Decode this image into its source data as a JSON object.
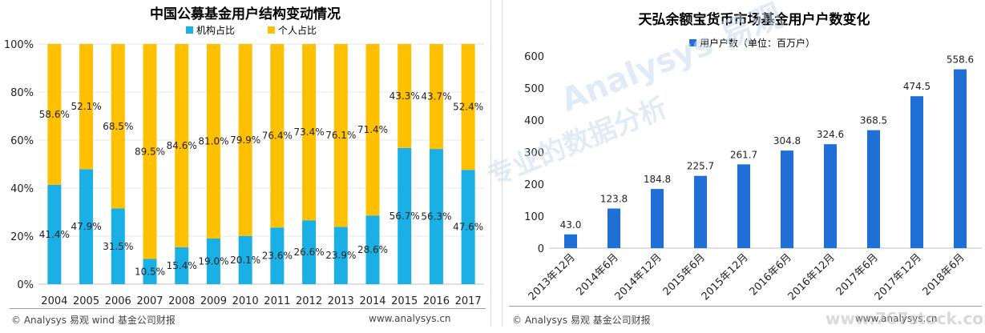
{
  "colors": {
    "institution": "#1ab0e6",
    "individual": "#ffc000",
    "users": "#1f6fd6"
  },
  "left": {
    "footer_source": "© Analysys 易观 wind 基金公司财报",
    "footer_url": "www.analysys.cn"
  },
  "right": {
    "footer_source": "© Analysys 易观 基金公司财报",
    "footer_url": "www.analysys.cn"
  },
  "watermark": {
    "brand": "Analysys 易观",
    "slogan": "专业的数据分析",
    "site": "www.767stock.com"
  },
  "chart_data": [
    {
      "type": "bar",
      "stacked": true,
      "title": "中国公募基金用户结构变动情况",
      "categories": [
        "2004",
        "2005",
        "2006",
        "2007",
        "2008",
        "2009",
        "2010",
        "2011",
        "2012",
        "2013",
        "2014",
        "2015",
        "2016",
        "2017"
      ],
      "series": [
        {
          "name": "机构占比",
          "values": [
            41.4,
            47.9,
            31.5,
            10.5,
            15.4,
            19.0,
            20.1,
            23.6,
            26.6,
            23.9,
            28.6,
            56.7,
            56.3,
            47.6
          ],
          "labels": [
            "41.4%",
            "47.9%",
            "31.5%",
            "10.5%",
            "15.4%",
            "19.0%",
            "20.1%",
            "23.6%",
            "26.6%",
            "23.9%",
            "28.6%",
            "56.7%",
            "56.3%",
            "47.6%"
          ]
        },
        {
          "name": "个人占比",
          "values": [
            58.6,
            52.1,
            68.5,
            89.5,
            84.6,
            81.0,
            79.9,
            76.4,
            73.4,
            76.1,
            71.4,
            43.3,
            43.7,
            52.4
          ],
          "labels": [
            "58.6%",
            "52.1%",
            "68.5%",
            "89.5%",
            "84.6%",
            "81.0%",
            "79.9%",
            "76.4%",
            "73.4%",
            "76.1%",
            "71.4%",
            "43.3%",
            "43.7%",
            "52.4%"
          ]
        }
      ],
      "ylim": [
        0,
        100
      ],
      "yticks": [
        "0%",
        "20%",
        "40%",
        "60%",
        "80%",
        "100%"
      ],
      "legend": "top"
    },
    {
      "type": "bar",
      "title": "天弘余额宝货币市场基金用户户数变化",
      "categories": [
        "2013年12月",
        "2014年6月",
        "2014年12月",
        "2015年6月",
        "2015年12月",
        "2016年6月",
        "2016年12月",
        "2017年6月",
        "2017年12月",
        "2018年6月"
      ],
      "series": [
        {
          "name": "用户户数（单位：百万户）",
          "values": [
            43.0,
            123.8,
            184.8,
            225.7,
            261.7,
            304.8,
            324.6,
            368.5,
            474.5,
            558.6
          ],
          "labels": [
            "43.0",
            "123.8",
            "184.8",
            "225.7",
            "261.7",
            "304.8",
            "324.6",
            "368.5",
            "474.5",
            "558.6"
          ]
        }
      ],
      "ylim": [
        0,
        600
      ],
      "yticks": [
        "0",
        "100",
        "200",
        "300",
        "400",
        "500",
        "600"
      ],
      "legend": "top-left"
    }
  ]
}
